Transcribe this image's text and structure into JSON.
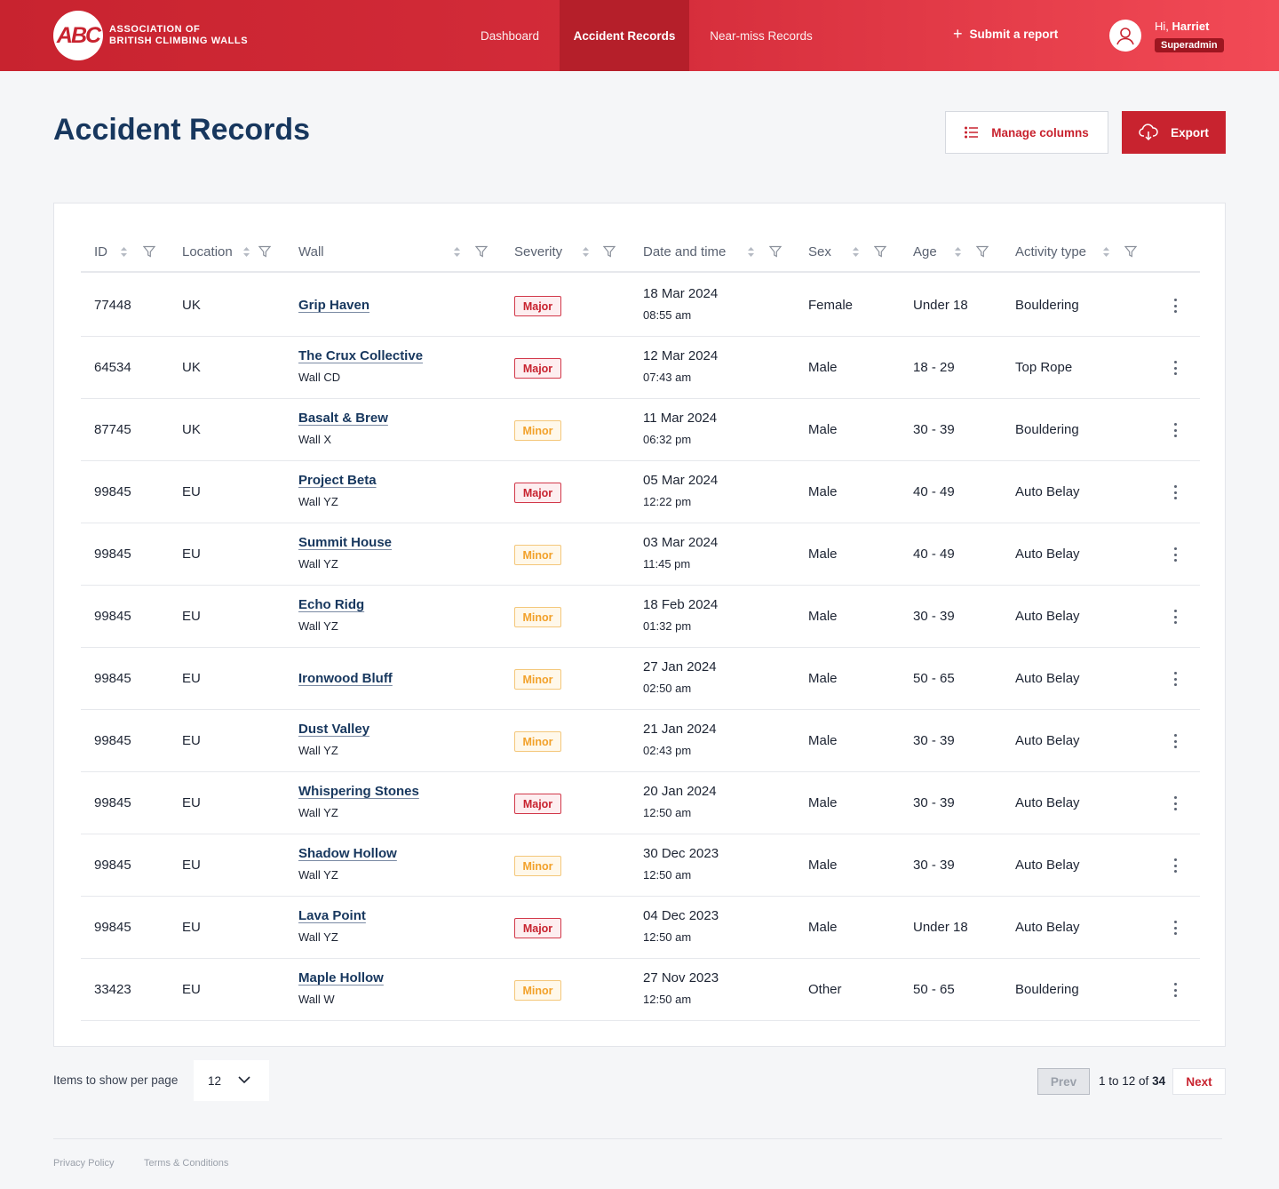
{
  "header": {
    "logo_mark": "ABC",
    "logo_line1": "ASSOCIATION OF",
    "logo_line2": "BRITISH CLIMBING WALLS",
    "nav": [
      "Dashboard",
      "Accident Records",
      "Near-miss Records"
    ],
    "active_nav": "Accident Records",
    "submit_label": "Submit a report",
    "greeting": "Hi,",
    "user_name": "Harriet",
    "role": "Superadmin"
  },
  "page": {
    "title": "Accident Records",
    "manage_columns_label": "Manage columns",
    "export_label": "Export"
  },
  "table": {
    "columns": [
      "ID",
      "Location",
      "Wall",
      "Severity",
      "Date and time",
      "Sex",
      "Age",
      "Activity type"
    ],
    "rows": [
      {
        "id": "77448",
        "location": "UK",
        "wall": "Grip Haven",
        "sub": "",
        "severity": "Major",
        "date": "18 Mar 2024",
        "time": "08:55 am",
        "sex": "Female",
        "age": "Under 18",
        "activity": "Bouldering"
      },
      {
        "id": "64534",
        "location": "UK",
        "wall": "The Crux Collective",
        "sub": "Wall CD",
        "severity": "Major",
        "date": "12 Mar 2024",
        "time": "07:43 am",
        "sex": "Male",
        "age": "18 - 29",
        "activity": "Top Rope"
      },
      {
        "id": "87745",
        "location": "UK",
        "wall": "Basalt & Brew",
        "sub": "Wall X",
        "severity": "Minor",
        "date": "11 Mar 2024",
        "time": "06:32 pm",
        "sex": "Male",
        "age": "30 - 39",
        "activity": "Bouldering"
      },
      {
        "id": "99845",
        "location": "EU",
        "wall": "Project Beta",
        "sub": "Wall YZ",
        "severity": "Major",
        "date": "05 Mar 2024",
        "time": "12:22 pm",
        "sex": "Male",
        "age": "40 - 49",
        "activity": "Auto Belay"
      },
      {
        "id": "99845",
        "location": "EU",
        "wall": "Summit House",
        "sub": "Wall YZ",
        "severity": "Minor",
        "date": "03 Mar 2024",
        "time": "11:45 pm",
        "sex": "Male",
        "age": "40 - 49",
        "activity": "Auto Belay"
      },
      {
        "id": "99845",
        "location": "EU",
        "wall": "Echo Ridg",
        "sub": "Wall YZ",
        "severity": "Minor",
        "date": "18 Feb 2024",
        "time": "01:32 pm",
        "sex": "Male",
        "age": "30 - 39",
        "activity": "Auto Belay"
      },
      {
        "id": "99845",
        "location": "EU",
        "wall": "Ironwood Bluff",
        "sub": "",
        "severity": "Minor",
        "date": "27 Jan 2024",
        "time": "02:50 am",
        "sex": "Male",
        "age": "50 - 65",
        "activity": "Auto Belay"
      },
      {
        "id": "99845",
        "location": "EU",
        "wall": "Dust Valley",
        "sub": "Wall YZ",
        "severity": "Minor",
        "date": "21 Jan 2024",
        "time": "02:43 pm",
        "sex": "Male",
        "age": "30 - 39",
        "activity": "Auto Belay"
      },
      {
        "id": "99845",
        "location": "EU",
        "wall": "Whispering Stones",
        "sub": "Wall YZ",
        "severity": "Major",
        "date": "20 Jan 2024",
        "time": "12:50 am",
        "sex": "Male",
        "age": "30 - 39",
        "activity": "Auto Belay"
      },
      {
        "id": "99845",
        "location": "EU",
        "wall": "Shadow Hollow",
        "sub": "Wall YZ",
        "severity": "Minor",
        "date": "30 Dec 2023",
        "time": "12:50 am",
        "sex": "Male",
        "age": "30 - 39",
        "activity": "Auto Belay"
      },
      {
        "id": "99845",
        "location": "EU",
        "wall": "Lava Point",
        "sub": "Wall YZ",
        "severity": "Major",
        "date": "04 Dec 2023",
        "time": "12:50 am",
        "sex": "Male",
        "age": "Under 18",
        "activity": "Auto Belay"
      },
      {
        "id": "33423",
        "location": "EU",
        "wall": "Maple Hollow",
        "sub": "Wall W",
        "severity": "Minor",
        "date": "27 Nov 2023",
        "time": "12:50 am",
        "sex": "Other",
        "age": "50 - 65",
        "activity": "Bouldering"
      }
    ]
  },
  "pagination": {
    "per_page_label": "Items to show per page",
    "per_page_value": "12",
    "prev_label": "Prev",
    "range_text": "1 to 12 of",
    "total": "34",
    "next_label": "Next"
  },
  "footer": {
    "links": [
      "Privacy Policy",
      "Terms & Conditions"
    ]
  },
  "colors": {
    "brand_red": "#c8232f",
    "title_navy": "#17375e",
    "minor_amber": "#f2a12a"
  },
  "icons": [
    "user-icon",
    "plus-icon",
    "list-icon",
    "cloud-download-icon",
    "sort-icon",
    "filter-icon",
    "kebab-icon",
    "chevron-down-icon"
  ]
}
